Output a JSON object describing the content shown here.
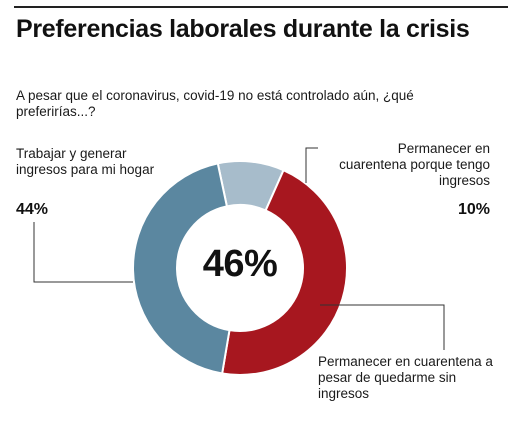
{
  "header": {
    "title": "Preferencias laborales durante la crisis",
    "subtitle": "A pesar que el coronavirus, covid-19 no está controlado aún, ¿qué preferirías...?"
  },
  "chart_data": {
    "type": "pie",
    "donut": true,
    "center_label": "46%",
    "slices": [
      {
        "label": "Trabajar y generar ingresos para mi hogar",
        "value": 44,
        "display": "44%",
        "color": "#5b87a0"
      },
      {
        "label": "Permanecer en cuarentena porque tengo ingresos",
        "value": 10,
        "display": "10%",
        "color": "#a7bccb"
      },
      {
        "label": "Permanecer en cuarentena a pesar de quedarme sin ingresos",
        "value": 46,
        "display": "",
        "color": "#a7171f"
      }
    ]
  }
}
